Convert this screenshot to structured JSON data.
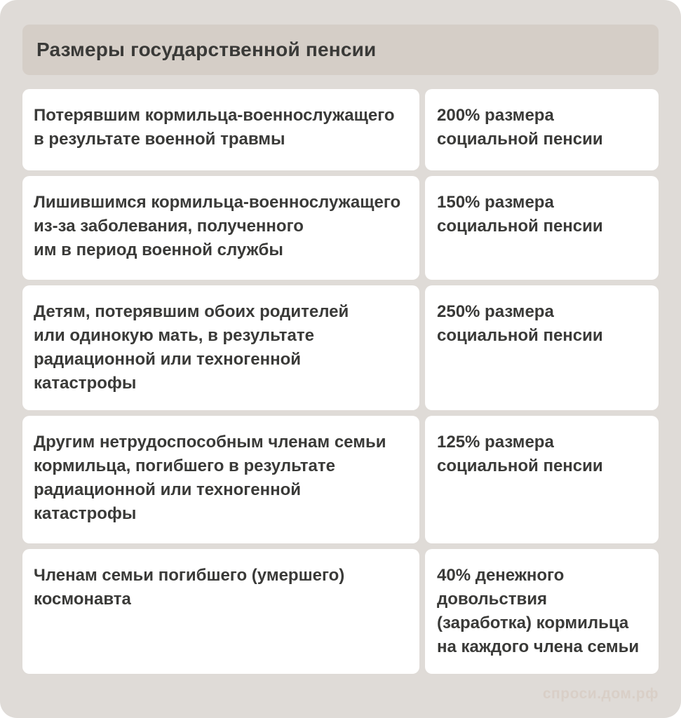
{
  "page": {
    "title": "Размеры государственной пенсии",
    "watermark": "спроси.дом.рф"
  },
  "colors": {
    "bg": "#dfdbd7",
    "banner": "#d5cec7",
    "card": "#ffffff",
    "text": "#3a3a38",
    "watermark": "#d9cfc7"
  },
  "table": {
    "rows": [
      {
        "category": "Потерявшим кормильца-военнослужащего\nв результате военной травмы",
        "value": "200% размера\nсоциальной пенсии"
      },
      {
        "category": "Лишившимся кормильца-военнослужащего\nиз-за заболевания, полученного\nим в период военной службы",
        "value": "150% размера\nсоциальной пенсии"
      },
      {
        "category": "Детям, потерявшим обоих родителей\nили одинокую мать, в результате\nрадиационной или техногенной\nкатастрофы",
        "value": "250% размера\nсоциальной пенсии"
      },
      {
        "category": "Другим нетрудоспособным членам семьи\nкормильца, погибшего в результате\nрадиационной или техногенной\nкатастрофы",
        "value": "125% размера\nсоциальной пенсии"
      },
      {
        "category": "Членам семьи погибшего (умершего)\nкосмонавта",
        "value": "40% денежного\nдовольствия\n(заработка) кормильца\nна каждого члена семьи"
      }
    ]
  }
}
